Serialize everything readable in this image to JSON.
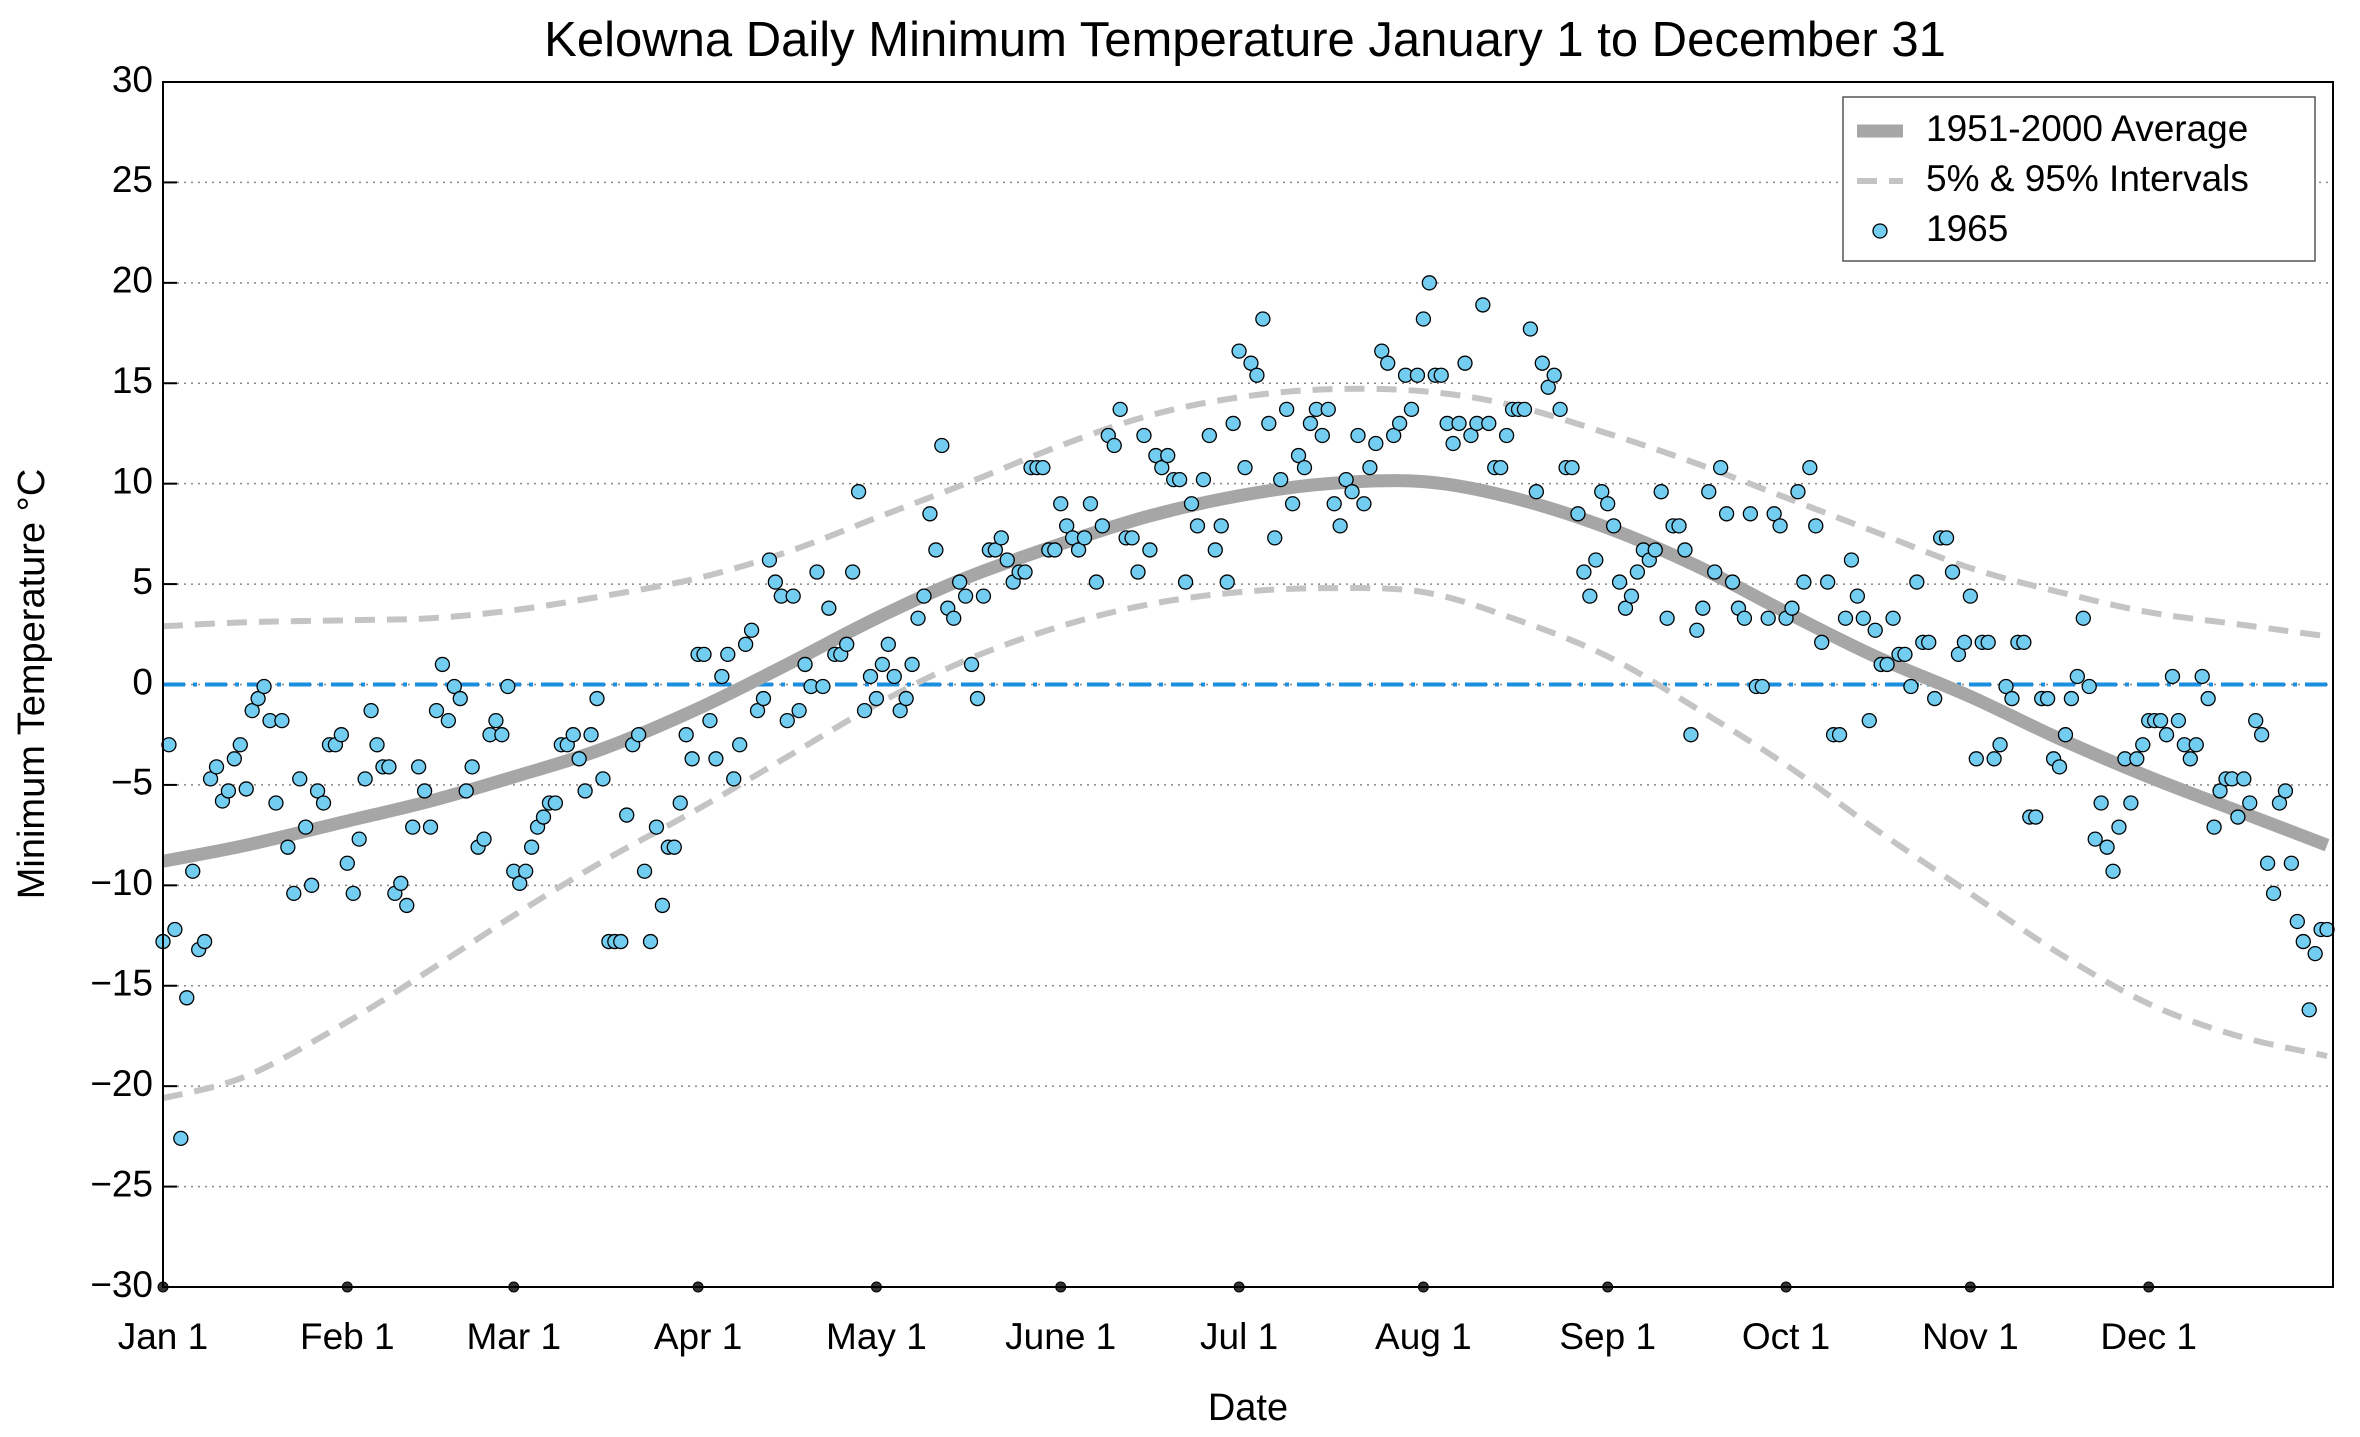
{
  "chart_data": {
    "type": "scatter",
    "title": "Kelowna Daily Minimum Temperature January 1 to December 31",
    "x_label": "Date",
    "y_label": "Minimum Temperature °C",
    "xlim": [
      1,
      366
    ],
    "ylim": [
      -30,
      30
    ],
    "xticks": [
      {
        "value": 1,
        "label": "Jan 1"
      },
      {
        "value": 32,
        "label": "Feb 1"
      },
      {
        "value": 60,
        "label": "Mar 1"
      },
      {
        "value": 91,
        "label": "Apr 1"
      },
      {
        "value": 121,
        "label": "May 1"
      },
      {
        "value": 152,
        "label": "June 1"
      },
      {
        "value": 182,
        "label": "Jul 1"
      },
      {
        "value": 213,
        "label": "Aug 1"
      },
      {
        "value": 244,
        "label": "Sep 1"
      },
      {
        "value": 274,
        "label": "Oct 1"
      },
      {
        "value": 305,
        "label": "Nov 1"
      },
      {
        "value": 335,
        "label": "Dec 1"
      }
    ],
    "yticks": [
      {
        "value": -30,
        "label": "−30"
      },
      {
        "value": -25,
        "label": "−25"
      },
      {
        "value": -20,
        "label": "−20"
      },
      {
        "value": -15,
        "label": "−15"
      },
      {
        "value": -10,
        "label": "−10"
      },
      {
        "value": -5,
        "label": "−5"
      },
      0,
      5,
      10,
      15,
      20,
      25,
      30
    ],
    "grid": true,
    "legend": "upper right",
    "reference_line": {
      "value": 0,
      "color": "#1a8ee0"
    },
    "series": [
      {
        "name": "1951-2000 Average",
        "type": "line",
        "color": "#a6a6a6",
        "x": [
          1,
          15,
          32,
          46,
          60,
          75,
          91,
          106,
          121,
          136,
          152,
          167,
          182,
          197,
          213,
          228,
          244,
          259,
          274,
          289,
          305,
          320,
          335,
          350,
          365
        ],
        "values": [
          -8.8,
          -8.0,
          -6.8,
          -5.8,
          -4.6,
          -3.2,
          -1.2,
          1.0,
          3.3,
          5.3,
          7.0,
          8.4,
          9.4,
          10.0,
          10.1,
          9.3,
          7.8,
          5.9,
          3.6,
          1.4,
          -0.6,
          -2.7,
          -4.6,
          -6.3,
          -8.0
        ]
      },
      {
        "name": "5% & 95% Intervals",
        "type": "dashed",
        "color": "#c4c4c4",
        "x": [
          1,
          15,
          32,
          46,
          60,
          75,
          91,
          106,
          121,
          136,
          152,
          167,
          182,
          197,
          213,
          228,
          244,
          259,
          274,
          289,
          305,
          320,
          335,
          350,
          365
        ],
        "values": [
          2.9,
          3.1,
          3.2,
          3.3,
          3.7,
          4.4,
          5.3,
          6.6,
          8.3,
          10.0,
          11.9,
          13.4,
          14.3,
          14.7,
          14.6,
          13.9,
          12.5,
          11.0,
          9.3,
          7.6,
          5.8,
          4.6,
          3.6,
          3.0,
          2.4
        ]
      },
      {
        "type": "dashed",
        "color": "#c4c4c4",
        "x": [
          1,
          15,
          32,
          46,
          60,
          75,
          91,
          106,
          121,
          136,
          152,
          167,
          182,
          197,
          213,
          228,
          244,
          259,
          274,
          289,
          305,
          320,
          335,
          350,
          365
        ],
        "values": [
          -20.6,
          -19.5,
          -16.8,
          -14.2,
          -11.5,
          -8.8,
          -6.2,
          -3.6,
          -1.0,
          1.2,
          2.9,
          4.0,
          4.6,
          4.8,
          4.6,
          3.3,
          1.4,
          -1.2,
          -4.0,
          -7.2,
          -10.4,
          -13.4,
          -15.9,
          -17.5,
          -18.5
        ]
      },
      {
        "name": "1965",
        "type": "scatter",
        "color": "#72cdf0",
        "x": [
          1,
          2,
          3,
          4,
          5,
          6,
          7,
          8,
          9,
          10,
          11,
          12,
          13,
          14,
          15,
          16,
          17,
          18,
          19,
          20,
          21,
          22,
          23,
          24,
          25,
          26,
          27,
          28,
          29,
          30,
          31,
          32,
          33,
          34,
          35,
          36,
          37,
          38,
          39,
          40,
          41,
          42,
          43,
          44,
          45,
          46,
          47,
          48,
          49,
          50,
          51,
          52,
          53,
          54,
          55,
          56,
          57,
          58,
          59,
          60,
          61,
          62,
          63,
          64,
          65,
          66,
          67,
          68,
          69,
          70,
          71,
          72,
          73,
          74,
          75,
          76,
          77,
          78,
          79,
          80,
          81,
          82,
          83,
          84,
          85,
          86,
          87,
          88,
          89,
          90,
          91,
          92,
          93,
          94,
          95,
          96,
          97,
          98,
          99,
          100,
          101,
          102,
          103,
          104,
          105,
          106,
          107,
          108,
          109,
          110,
          111,
          112,
          113,
          114,
          115,
          116,
          117,
          118,
          119,
          120,
          121,
          122,
          123,
          124,
          125,
          126,
          127,
          128,
          129,
          130,
          131,
          132,
          133,
          134,
          135,
          136,
          137,
          138,
          139,
          140,
          141,
          142,
          143,
          144,
          145,
          146,
          147,
          148,
          149,
          150,
          151,
          152,
          153,
          154,
          155,
          156,
          157,
          158,
          159,
          160,
          161,
          162,
          163,
          164,
          165,
          166,
          167,
          168,
          169,
          170,
          171,
          172,
          173,
          174,
          175,
          176,
          177,
          178,
          179,
          180,
          181,
          182,
          183,
          184,
          185,
          186,
          187,
          188,
          189,
          190,
          191,
          192,
          193,
          194,
          195,
          196,
          197,
          198,
          199,
          200,
          201,
          202,
          203,
          204,
          205,
          206,
          207,
          208,
          209,
          210,
          211,
          212,
          213,
          214,
          215,
          216,
          217,
          218,
          219,
          220,
          221,
          222,
          223,
          224,
          225,
          226,
          227,
          228,
          229,
          230,
          231,
          232,
          233,
          234,
          235,
          236,
          237,
          238,
          239,
          240,
          241,
          242,
          243,
          244,
          245,
          246,
          247,
          248,
          249,
          250,
          251,
          252,
          253,
          254,
          255,
          256,
          257,
          258,
          259,
          260,
          261,
          262,
          263,
          264,
          265,
          266,
          267,
          268,
          269,
          270,
          271,
          272,
          273,
          274,
          275,
          276,
          277,
          278,
          279,
          280,
          281,
          282,
          283,
          284,
          285,
          286,
          287,
          288,
          289,
          290,
          291,
          292,
          293,
          294,
          295,
          296,
          297,
          298,
          299,
          300,
          301,
          302,
          303,
          304,
          305,
          306,
          307,
          308,
          309,
          310,
          311,
          312,
          313,
          314,
          315,
          316,
          317,
          318,
          319,
          320,
          321,
          322,
          323,
          324,
          325,
          326,
          327,
          328,
          329,
          330,
          331,
          332,
          333,
          334,
          335,
          336,
          337,
          338,
          339,
          340,
          341,
          342,
          343,
          344,
          345,
          346,
          347,
          348,
          349,
          350,
          351,
          352,
          353,
          354,
          355,
          356,
          357,
          358,
          359,
          360,
          361,
          362,
          363,
          364,
          365
        ],
        "values": [
          -12.8,
          -3,
          -12.2,
          -22.6,
          -15.6,
          -9.3,
          -13.2,
          -12.8,
          -4.7,
          -4.1,
          -5.8,
          -5.3,
          -3.7,
          -3,
          -5.2,
          -1.3,
          -0.7,
          -0.1,
          -1.8,
          -5.9,
          -1.8,
          -8.1,
          -10.4,
          -4.7,
          -7.1,
          -10,
          -5.3,
          -5.9,
          -3,
          -3,
          -2.5,
          -8.9,
          -10.4,
          -7.7,
          -4.7,
          -1.3,
          -3,
          -4.1,
          -4.1,
          -10.4,
          -9.9,
          -11,
          -7.1,
          -4.1,
          -5.3,
          -7.1,
          -1.3,
          1,
          -1.8,
          -0.1,
          -0.7,
          -5.3,
          -4.1,
          -8.1,
          -7.7,
          -2.5,
          -1.8,
          -2.5,
          -0.1,
          -9.3,
          -9.9,
          -9.3,
          -8.1,
          -7.1,
          -6.6,
          -5.9,
          -5.9,
          -3,
          -3,
          -2.5,
          -3.7,
          -5.3,
          -2.5,
          -0.7,
          -4.7,
          -12.8,
          -12.8,
          -12.8,
          -6.5,
          -3,
          -2.5,
          -9.3,
          -12.8,
          -7.1,
          -11,
          -8.1,
          -8.1,
          -5.9,
          -2.5,
          -3.7,
          1.5,
          1.5,
          -1.8,
          -3.7,
          0.4,
          1.5,
          -4.7,
          -3,
          2,
          2.7,
          -1.3,
          -0.7,
          6.2,
          5.1,
          4.4,
          -1.8,
          4.4,
          -1.3,
          1,
          -0.1,
          5.6,
          -0.1,
          3.8,
          1.5,
          1.5,
          2,
          5.6,
          9.6,
          -1.3,
          0.4,
          -0.7,
          1,
          2,
          0.4,
          -1.3,
          -0.7,
          1,
          3.3,
          4.4,
          8.5,
          6.7,
          11.9,
          3.8,
          3.3,
          5.1,
          4.4,
          1,
          -0.7,
          4.4,
          6.7,
          6.7,
          7.3,
          6.2,
          5.1,
          5.6,
          5.6,
          10.8,
          10.8,
          10.8,
          6.7,
          6.7,
          9,
          7.9,
          7.3,
          6.7,
          7.3,
          9,
          5.1,
          7.9,
          12.4,
          11.9,
          13.7,
          7.3,
          7.3,
          5.6,
          12.4,
          6.7,
          11.4,
          10.8,
          11.4,
          10.2,
          10.2,
          5.1,
          9,
          7.9,
          10.2,
          12.4,
          6.7,
          7.9,
          5.1,
          13,
          16.6,
          10.8,
          16,
          15.4,
          18.2,
          13,
          7.3,
          10.2,
          13.7,
          9,
          11.4,
          10.8,
          13,
          13.7,
          12.4,
          13.7,
          9,
          7.9,
          10.2,
          9.6,
          12.4,
          9,
          10.8,
          12,
          16.6,
          16,
          12.4,
          13,
          15.4,
          13.7,
          15.4,
          18.2,
          20,
          15.4,
          15.4,
          13,
          12,
          13,
          16,
          12.4,
          13,
          18.9,
          13,
          10.8,
          10.8,
          12.4,
          13.7,
          13.7,
          13.7,
          17.7,
          9.6,
          16,
          14.8,
          15.4,
          13.7,
          10.8,
          10.8,
          8.5,
          5.6,
          4.4,
          6.2,
          9.6,
          9,
          7.9,
          5.1,
          3.8,
          4.4,
          5.6,
          6.7,
          6.2,
          6.7,
          9.6,
          3.3,
          7.9,
          7.9,
          6.7,
          -2.5,
          2.7,
          3.8,
          9.6,
          5.6,
          10.8,
          8.5,
          5.1,
          3.8,
          3.3,
          8.5,
          -0.1,
          -0.1,
          3.3,
          8.5,
          7.9,
          3.3,
          3.8,
          9.6,
          5.1,
          10.8,
          7.9,
          2.1,
          5.1,
          -2.5,
          -2.5,
          3.3,
          6.2,
          4.4,
          3.3,
          -1.8,
          2.7,
          1,
          1,
          3.3,
          1.5,
          1.5,
          -0.1,
          5.1,
          2.1,
          2.1,
          -0.7,
          7.3,
          7.3,
          5.6,
          1.5,
          2.1,
          4.4,
          -3.7,
          2.1,
          2.1,
          -3.7,
          -3,
          -0.1,
          -0.7,
          2.1,
          2.1,
          -6.6,
          -6.6,
          -0.7,
          -0.7,
          -3.7,
          -4.1,
          -2.5,
          -0.7,
          0.4,
          3.3,
          -0.1,
          -7.7,
          -5.9,
          -8.1,
          -9.3,
          -7.1,
          -3.7,
          -5.9,
          -3.7,
          -3,
          -1.8,
          -1.8,
          -1.8,
          -2.5,
          0.4,
          -1.8,
          -3,
          -3.7,
          -3,
          0.4,
          -0.7,
          -7.1,
          -5.3,
          -4.7,
          -4.7,
          -6.6,
          -4.7,
          -5.9,
          -1.8,
          -2.5,
          -8.9,
          -10.4,
          -5.9,
          -5.3,
          -8.9,
          -11.8,
          -12.8,
          -16.2,
          -13.4,
          -12.2,
          -12.2
        ]
      }
    ]
  }
}
